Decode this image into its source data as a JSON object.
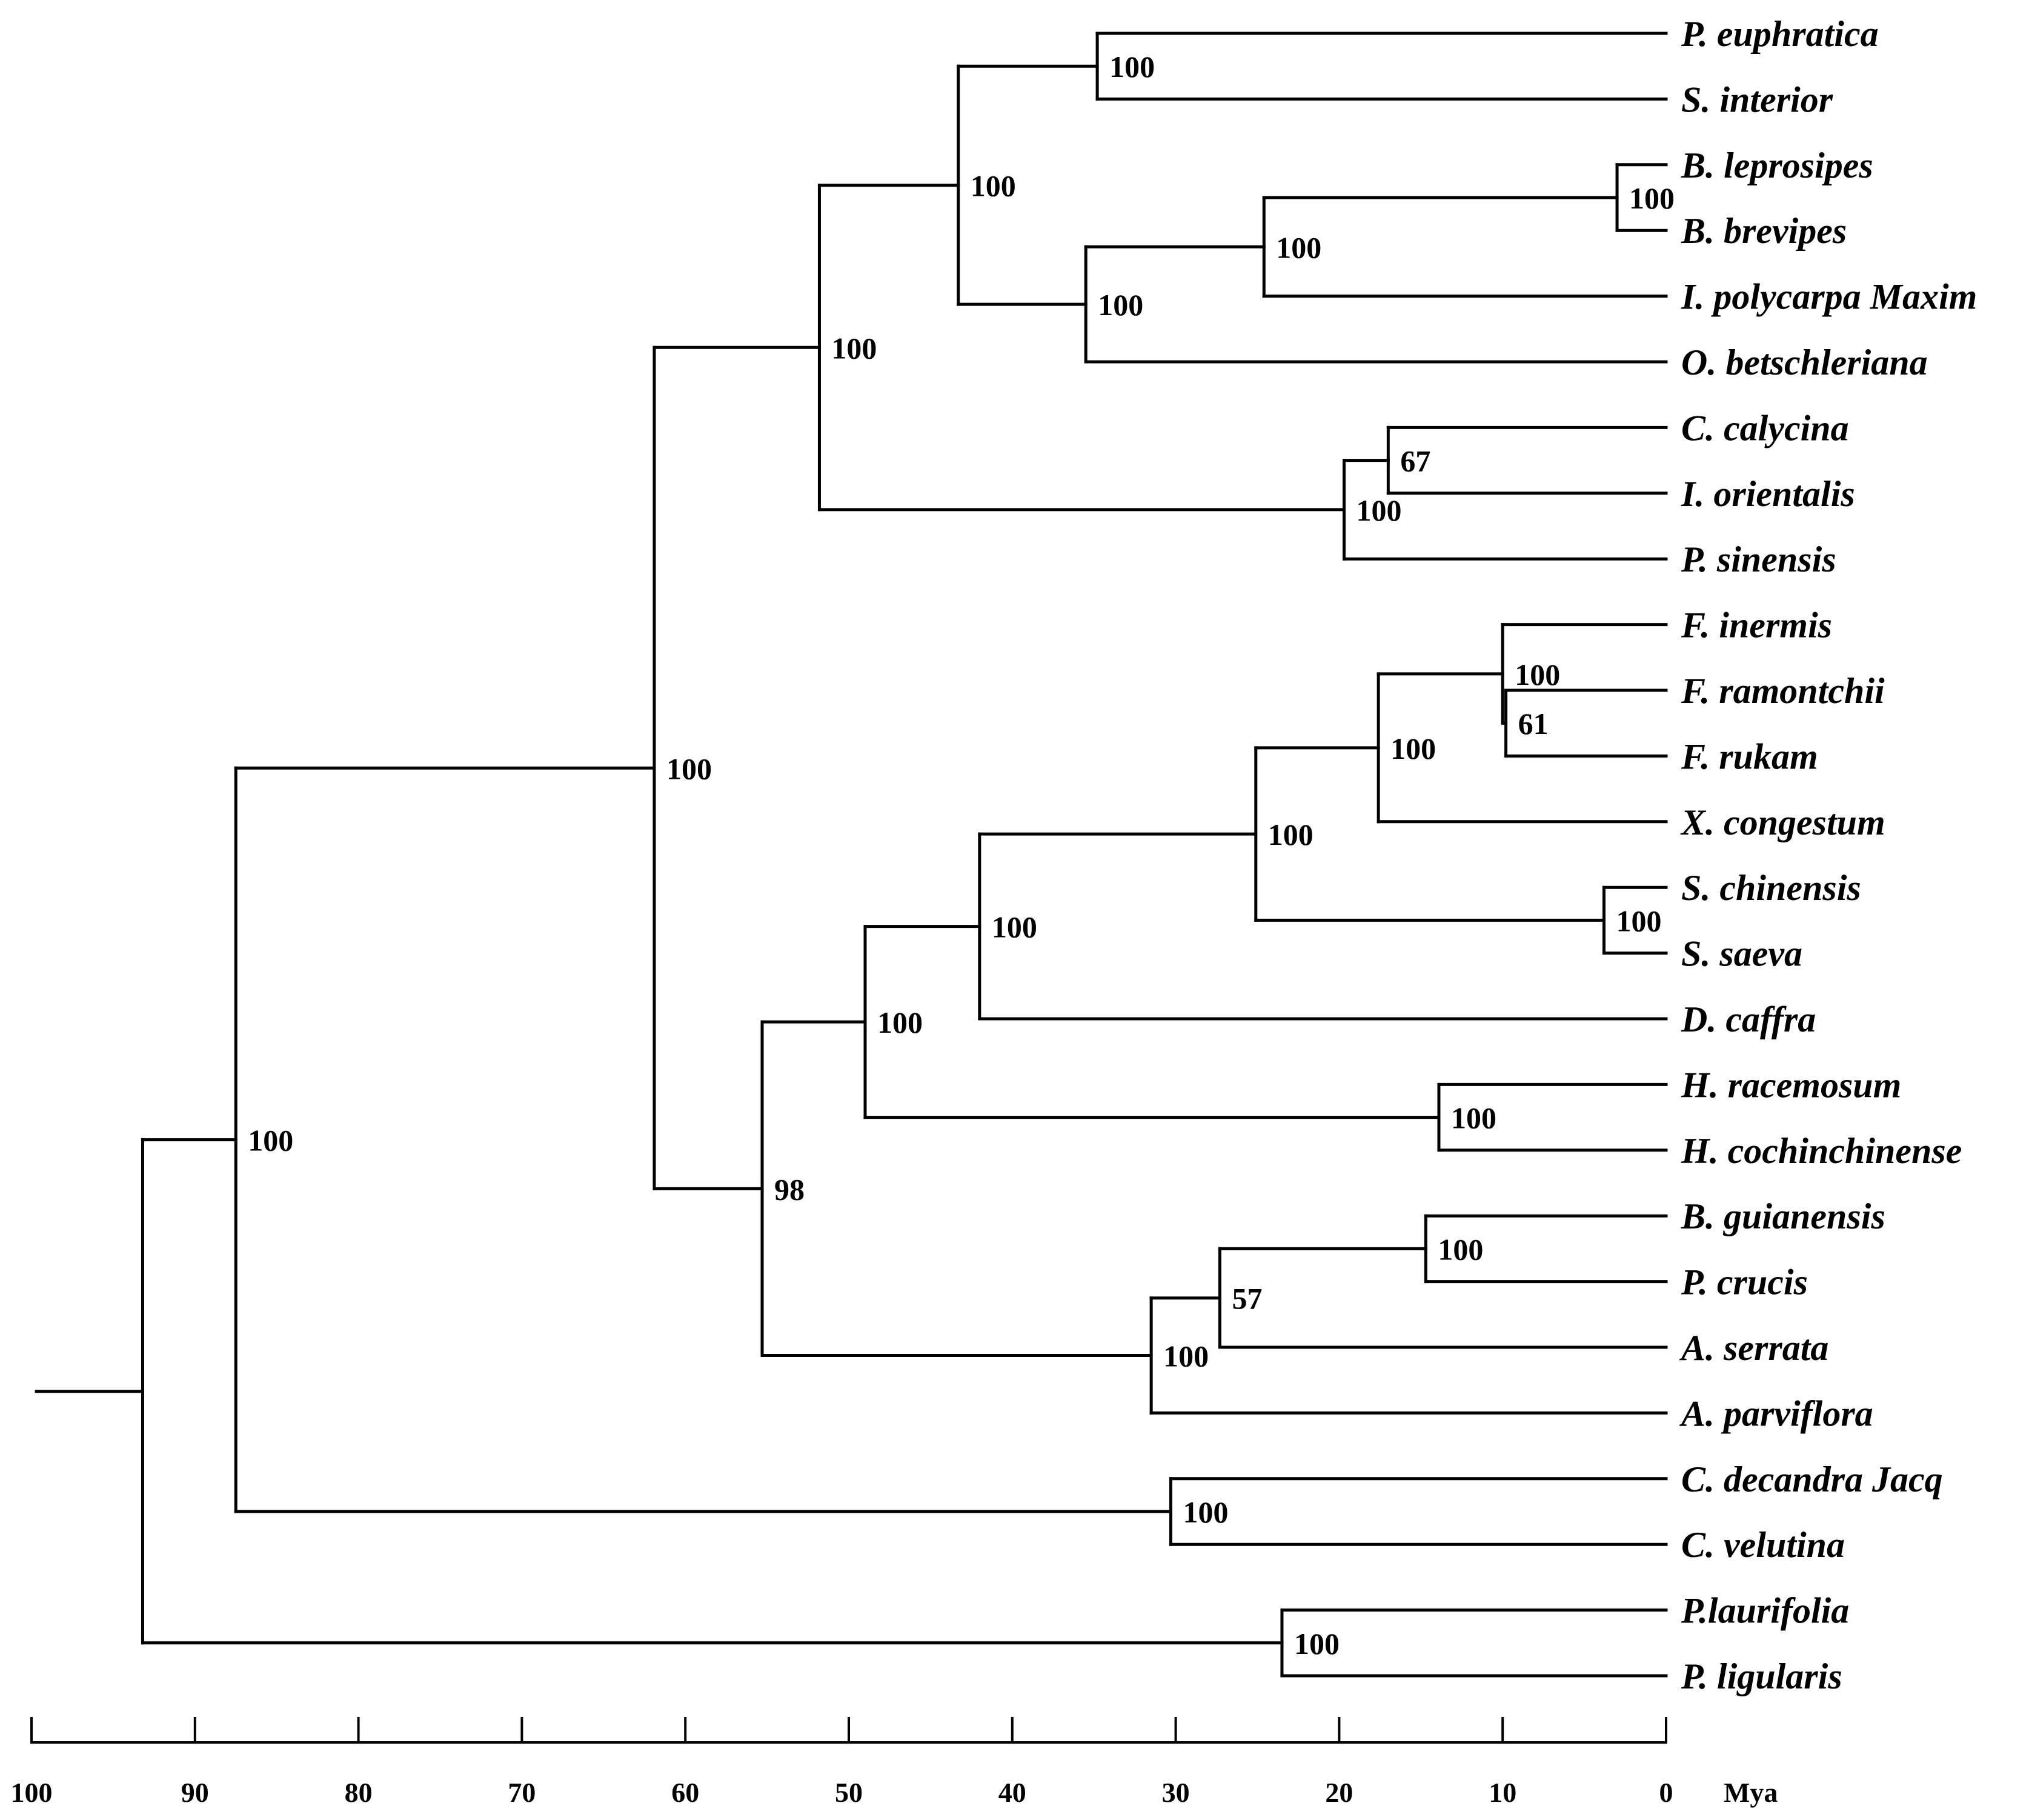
{
  "figure": {
    "type": "time-calibrated phylogenetic tree",
    "axis": {
      "unit_label": "Mya",
      "ticks": [
        "100",
        "90",
        "80",
        "70",
        "60",
        "50",
        "40",
        "30",
        "20",
        "10",
        "0"
      ],
      "range_mya": [
        100,
        0
      ]
    },
    "taxa": [
      "P. euphratica",
      "S. interior",
      "B. leprosipes",
      "B. brevipes",
      "I. polycarpa Maxim",
      "O. betschleriana",
      "C. calycina",
      "I. orientalis",
      "P. sinensis",
      "F. inermis",
      "F. ramontchii",
      "F. rukam",
      "X. congestum",
      "S. chinensis",
      "S. saeva",
      "D. caffra",
      "H. racemosum",
      "H. cochinchinense",
      "B. guianensis",
      "P. crucis",
      "A. serrata",
      "A. parviflora",
      "C. decandra Jacq",
      "C. velutina",
      "P.laurifolia",
      "P. ligularis"
    ],
    "nodes": [
      {
        "id": "n_eup_int",
        "age_mya": 34.8,
        "support": "100",
        "children": [
          0,
          1
        ]
      },
      {
        "id": "n_lep_bre",
        "age_mya": 3,
        "support": "100",
        "children": [
          2,
          3
        ]
      },
      {
        "id": "n_bre_pol",
        "age_mya": 24.6,
        "support": "100",
        "children": [
          "n_lep_bre",
          4
        ]
      },
      {
        "id": "n_pol_bet",
        "age_mya": 35.5,
        "support": "100",
        "children": [
          "n_bre_pol",
          5
        ]
      },
      {
        "id": "n_sal",
        "age_mya": 43.3,
        "support": "100",
        "children": [
          "n_eup_int",
          "n_pol_bet"
        ]
      },
      {
        "id": "n_cal_ori",
        "age_mya": 17,
        "support": "67",
        "children": [
          6,
          7
        ]
      },
      {
        "id": "n_cal_sin",
        "age_mya": 19.7,
        "support": "100",
        "children": [
          "n_cal_ori",
          8
        ]
      },
      {
        "id": "n_upper",
        "age_mya": 51.8,
        "support": "100",
        "children": [
          "n_sal",
          "n_cal_sin"
        ]
      },
      {
        "id": "n_ram_ruk",
        "age_mya": 9.8,
        "support": "61",
        "children": [
          10,
          11
        ]
      },
      {
        "id": "n_flac",
        "age_mya": 10,
        "support": "100",
        "children": [
          9,
          "n_ram_ruk"
        ]
      },
      {
        "id": "n_flac_x",
        "age_mya": 17.6,
        "support": "100",
        "children": [
          "n_flac",
          12
        ]
      },
      {
        "id": "n_chi_sae",
        "age_mya": 3.8,
        "support": "100",
        "children": [
          13,
          14
        ]
      },
      {
        "id": "n_fx_sc",
        "age_mya": 25.1,
        "support": "100",
        "children": [
          "n_flac_x",
          "n_chi_sae"
        ]
      },
      {
        "id": "n_caf",
        "age_mya": 42,
        "support": "100",
        "children": [
          "n_fx_sc",
          15
        ]
      },
      {
        "id": "n_hyp",
        "age_mya": 13.9,
        "support": "100",
        "children": [
          16,
          17
        ]
      },
      {
        "id": "n_caf_hyp",
        "age_mya": 49,
        "support": "100",
        "children": [
          "n_caf",
          "n_hyp"
        ]
      },
      {
        "id": "n_gui_cru",
        "age_mya": 14.7,
        "support": "100",
        "children": [
          18,
          19
        ]
      },
      {
        "id": "n_ser",
        "age_mya": 27.3,
        "support": "57",
        "children": [
          "n_gui_cru",
          20
        ]
      },
      {
        "id": "n_par",
        "age_mya": 31.5,
        "support": "100",
        "children": [
          "n_ser",
          21
        ]
      },
      {
        "id": "n_lower",
        "age_mya": 55.3,
        "support": "98",
        "children": [
          "n_caf_hyp",
          "n_par"
        ]
      },
      {
        "id": "n_in",
        "age_mya": 61.9,
        "support": "100",
        "children": [
          "n_upper",
          "n_lower"
        ]
      },
      {
        "id": "n_dec_vel",
        "age_mya": 30.3,
        "support": "100",
        "children": [
          22,
          23
        ]
      },
      {
        "id": "n_ing",
        "age_mya": 87.5,
        "support": "100",
        "children": [
          "n_in",
          "n_dec_vel"
        ]
      },
      {
        "id": "n_lau_lig",
        "age_mya": 23.5,
        "support": "100",
        "children": [
          24,
          25
        ]
      },
      {
        "id": "n_root",
        "age_mya": 93.2,
        "support": "",
        "children": [
          "n_ing",
          "n_lau_lig"
        ]
      }
    ],
    "root_stem_start_mya": 99.7
  }
}
